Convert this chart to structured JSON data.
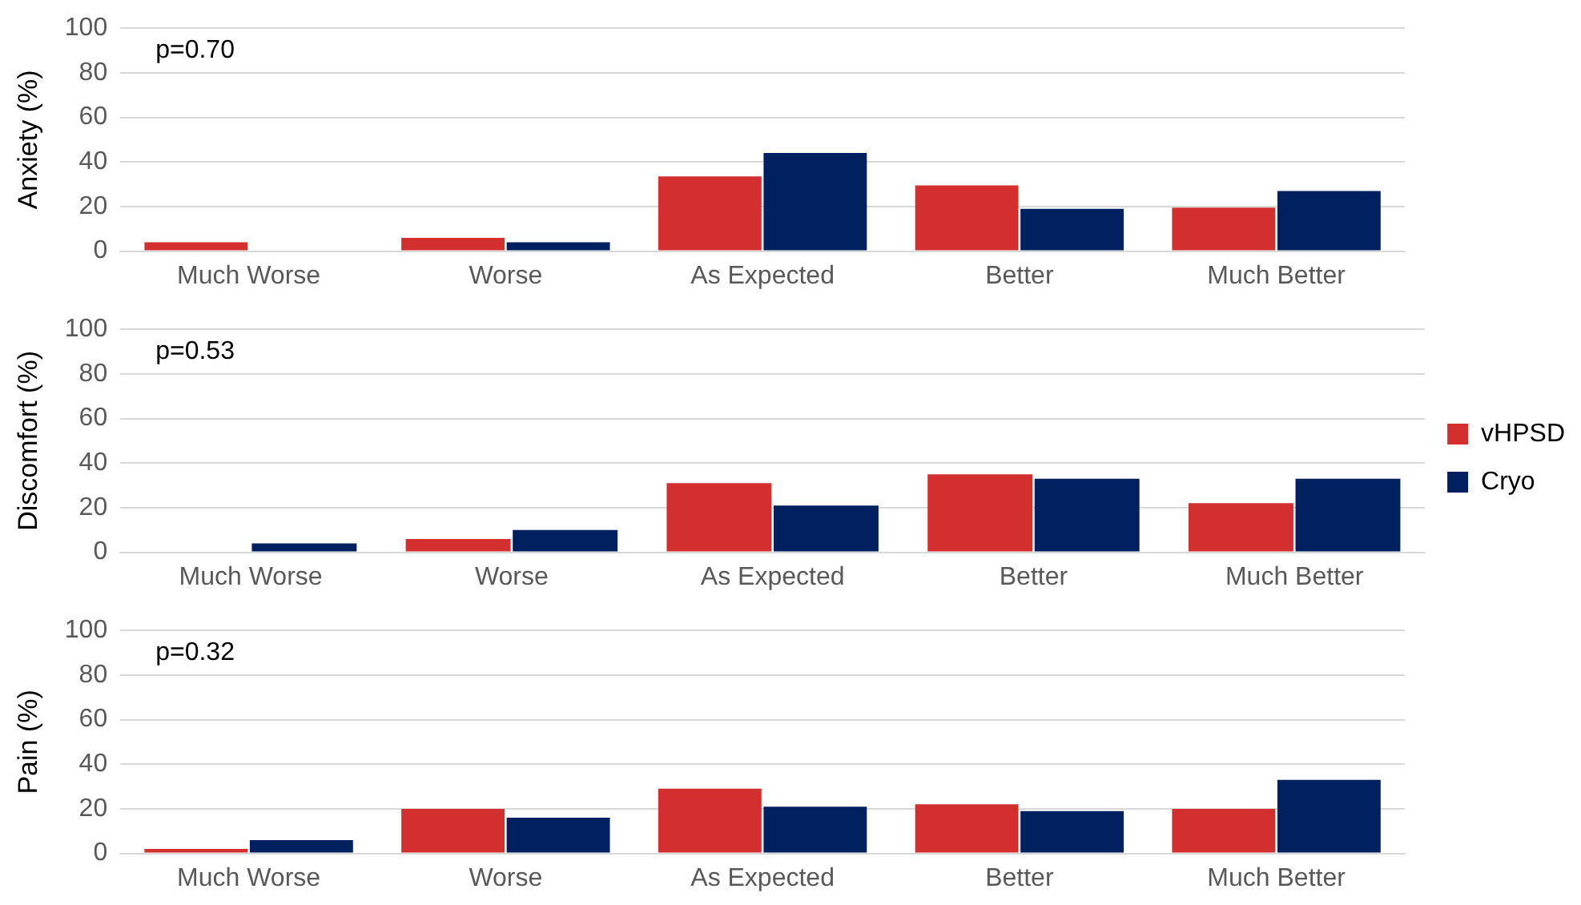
{
  "chart_data": [
    {
      "type": "bar",
      "ylabel": "Anxiety (%)",
      "categories": [
        "Much Worse",
        "Worse",
        "As Expected",
        "Better",
        "Much Better"
      ],
      "series": [
        {
          "color": "#d32f2f",
          "values": [
            4,
            6,
            33.5,
            29.5,
            19.5
          ]
        },
        {
          "color": "#002060",
          "values": [
            0,
            4,
            44,
            19,
            27
          ]
        }
      ],
      "ylim": [
        0,
        100
      ],
      "yticks": [
        0,
        20,
        40,
        60,
        80,
        100
      ],
      "grid": "y",
      "legend": false,
      "annotations": [
        "p=0.70"
      ]
    },
    {
      "type": "bar",
      "ylabel": "Discomfort (%)",
      "categories": [
        "Much Worse",
        "Worse",
        "As Expected",
        "Better",
        "Much Better"
      ],
      "series": [
        {
          "name": "vHPSD",
          "color": "#d32f2f",
          "values": [
            0,
            6,
            31,
            35,
            22
          ]
        },
        {
          "name": "Cryo",
          "color": "#002060",
          "values": [
            4,
            10,
            21,
            33,
            33
          ]
        }
      ],
      "ylim": [
        0,
        100
      ],
      "yticks": [
        0,
        20,
        40,
        60,
        80,
        100
      ],
      "grid": "y",
      "legend": "right",
      "annotations": [
        "p=0.53"
      ]
    },
    {
      "type": "bar",
      "ylabel": "Pain (%)",
      "categories": [
        "Much Worse",
        "Worse",
        "As Expected",
        "Better",
        "Much Better"
      ],
      "series": [
        {
          "color": "#d32f2f",
          "values": [
            2,
            20,
            29,
            22,
            20
          ]
        },
        {
          "color": "#002060",
          "values": [
            6,
            16,
            21,
            19,
            33
          ]
        }
      ],
      "ylim": [
        0,
        100
      ],
      "yticks": [
        0,
        20,
        40,
        60,
        80,
        100
      ],
      "grid": "y",
      "legend": false,
      "annotations": [
        "p=0.32"
      ]
    }
  ]
}
